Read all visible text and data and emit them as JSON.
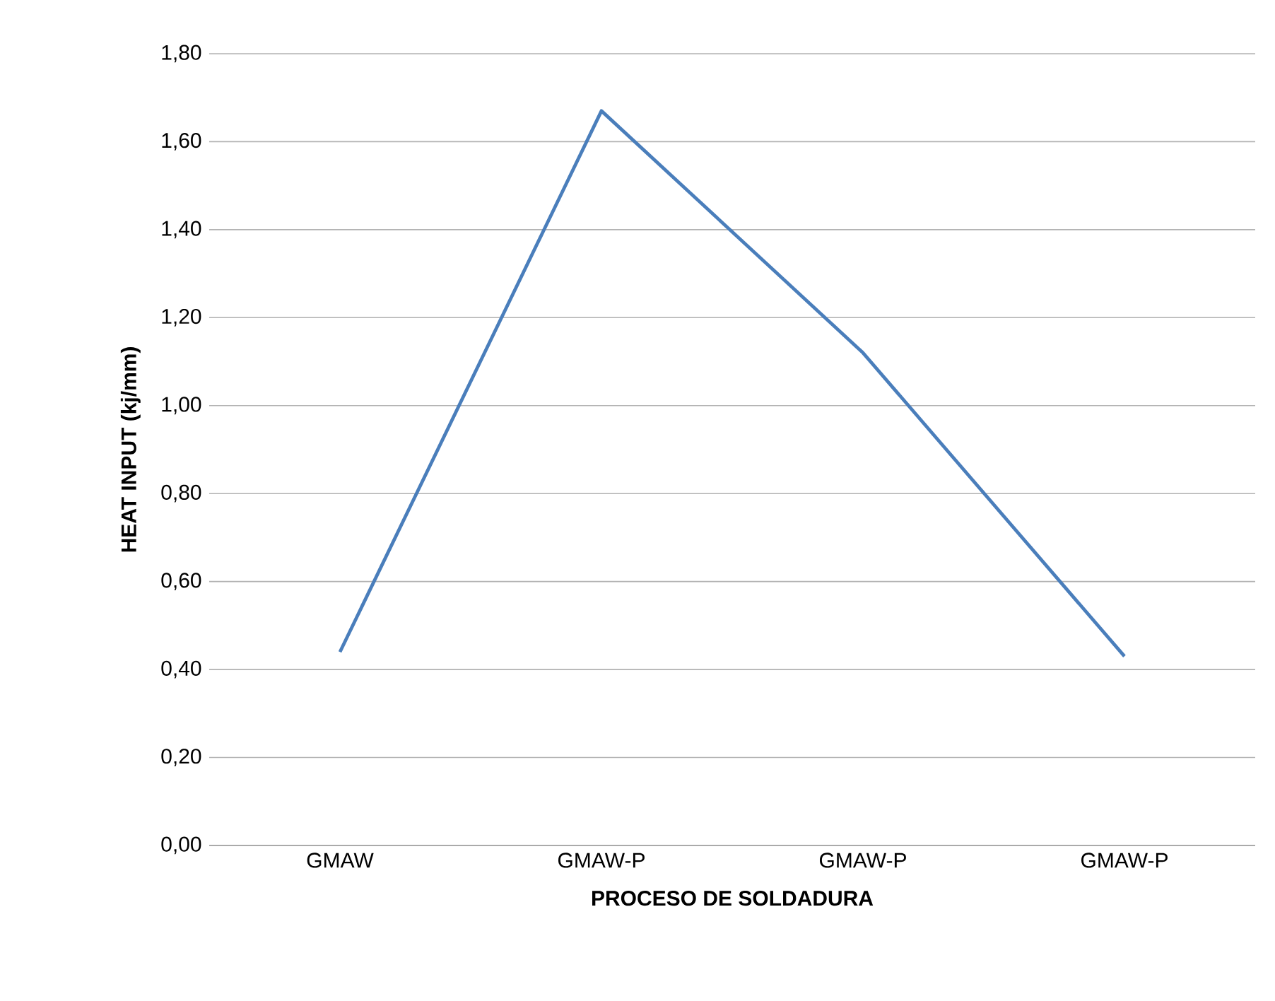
{
  "chart_data": {
    "type": "line",
    "xlabel": "PROCESO DE SOLDADURA",
    "ylabel": "HEAT INPUT (kj/mm)",
    "categories": [
      "GMAW",
      "GMAW-P",
      "GMAW-P",
      "GMAW-P"
    ],
    "series": [
      {
        "color": "#4a7ebb",
        "values": [
          0.44,
          1.67,
          1.12,
          0.43
        ]
      }
    ],
    "ylim": [
      0,
      1.8
    ],
    "yticks": [
      {
        "value": 0,
        "label": "0,00"
      },
      {
        "value": 0.2,
        "label": "0,20"
      },
      {
        "value": 0.4,
        "label": "0,40"
      },
      {
        "value": 0.6,
        "label": "0,60"
      },
      {
        "value": 0.8,
        "label": "0,80"
      },
      {
        "value": 1.0,
        "label": "1,00"
      },
      {
        "value": 1.2,
        "label": "1,20"
      },
      {
        "value": 1.4,
        "label": "1,40"
      },
      {
        "value": 1.6,
        "label": "1,60"
      },
      {
        "value": 1.8,
        "label": "1,80"
      }
    ],
    "grid": "y",
    "marker": "none",
    "line_style": "solid"
  }
}
